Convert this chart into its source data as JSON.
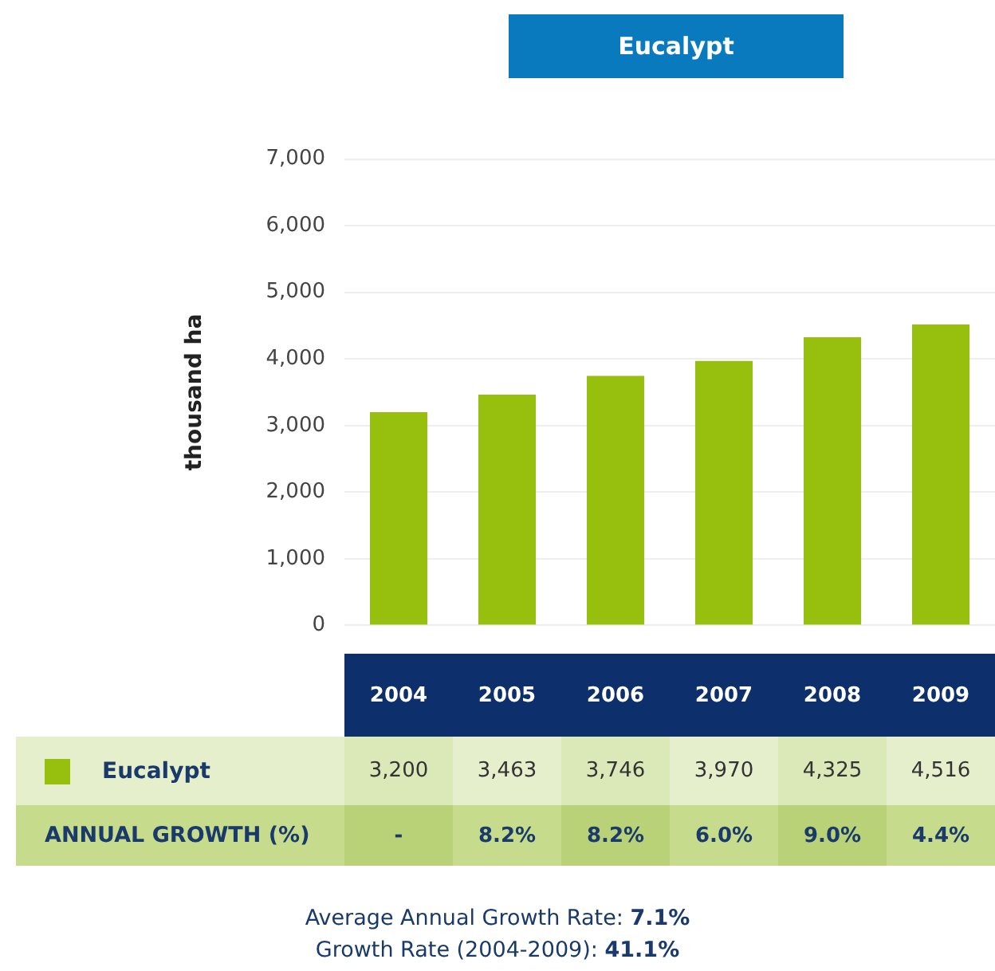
{
  "chart_data": {
    "type": "bar",
    "title": "Eucalypt",
    "ylabel": "thousand ha",
    "categories": [
      "2004",
      "2005",
      "2006",
      "2007",
      "2008",
      "2009"
    ],
    "series": [
      {
        "name": "Eucalypt",
        "color": "#97bf0d",
        "values": [
          3200,
          3463,
          3746,
          3970,
          4325,
          4516
        ],
        "value_labels": [
          "3,200",
          "3,463",
          "3,746",
          "3,970",
          "4,325",
          "4,516"
        ]
      }
    ],
    "ylim": [
      0,
      7000
    ],
    "yticks": [
      {
        "value": 0,
        "label": "0"
      },
      {
        "value": 1000,
        "label": "1,000"
      },
      {
        "value": 2000,
        "label": "2,000"
      },
      {
        "value": 3000,
        "label": "3,000"
      },
      {
        "value": 4000,
        "label": "4,000"
      },
      {
        "value": 5000,
        "label": "5,000"
      },
      {
        "value": 6000,
        "label": "6,000"
      },
      {
        "value": 7000,
        "label": "7,000"
      }
    ],
    "grid": "y",
    "legend": "bottom",
    "annotations": [
      "ANNUAL GROWTH (%)",
      "-",
      "8.2%",
      "8.2%",
      "6.0%",
      "9.0%",
      "4.4%",
      "Average Annual Growth Rate: 7.1%",
      "Growth Rate (2004-2009): 41.1%"
    ]
  }
}
